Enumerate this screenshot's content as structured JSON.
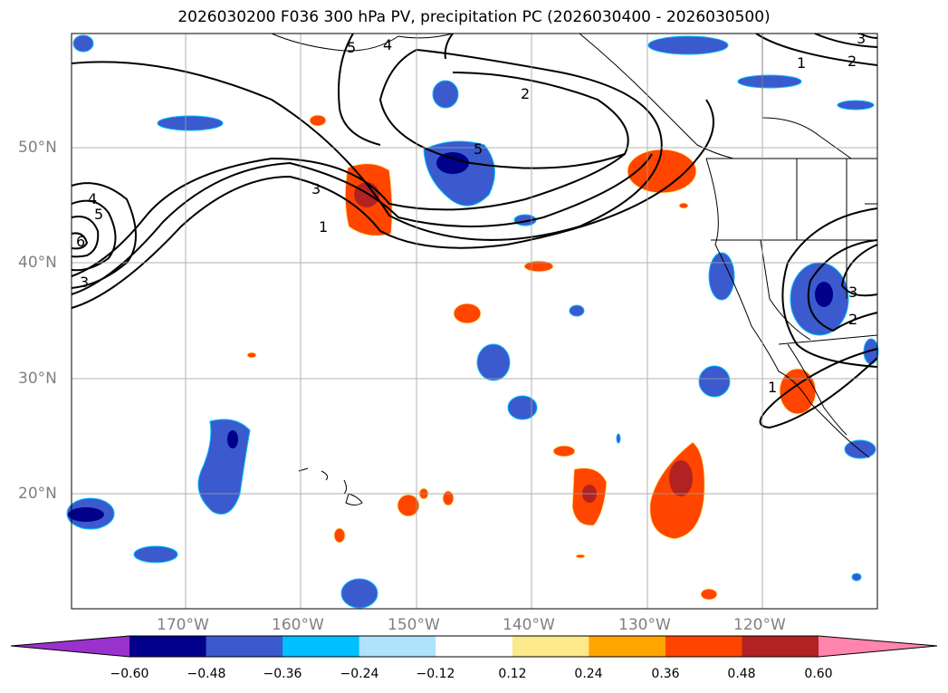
{
  "title": "2026030200 F036 300 hPa PV, precipitation PC (2026030400 - 2026030500)",
  "lat_labels": [
    "50°N",
    "40°N",
    "30°N",
    "20°N"
  ],
  "lon_labels": [
    "170°W",
    "160°W",
    "150°W",
    "140°W",
    "130°W",
    "120°W"
  ],
  "contour_labels": [
    "5",
    "4",
    "2",
    "1",
    "2",
    "3",
    "3",
    "1",
    "4",
    "5",
    "6",
    "3",
    "5",
    "1",
    "3",
    "2"
  ],
  "colorbar": {
    "colors": [
      "#9932cc",
      "#00008b",
      "#3a5acd",
      "#00bfff",
      "#aee3fb",
      "#ffffff",
      "#fce98c",
      "#ffa500",
      "#ff4500",
      "#b22222",
      "#ff85ad"
    ],
    "tick_labels": [
      "−0.60",
      "−0.48",
      "−0.36",
      "−0.24",
      "−0.12",
      "0.12",
      "0.24",
      "0.36",
      "0.48",
      "0.60"
    ]
  }
}
